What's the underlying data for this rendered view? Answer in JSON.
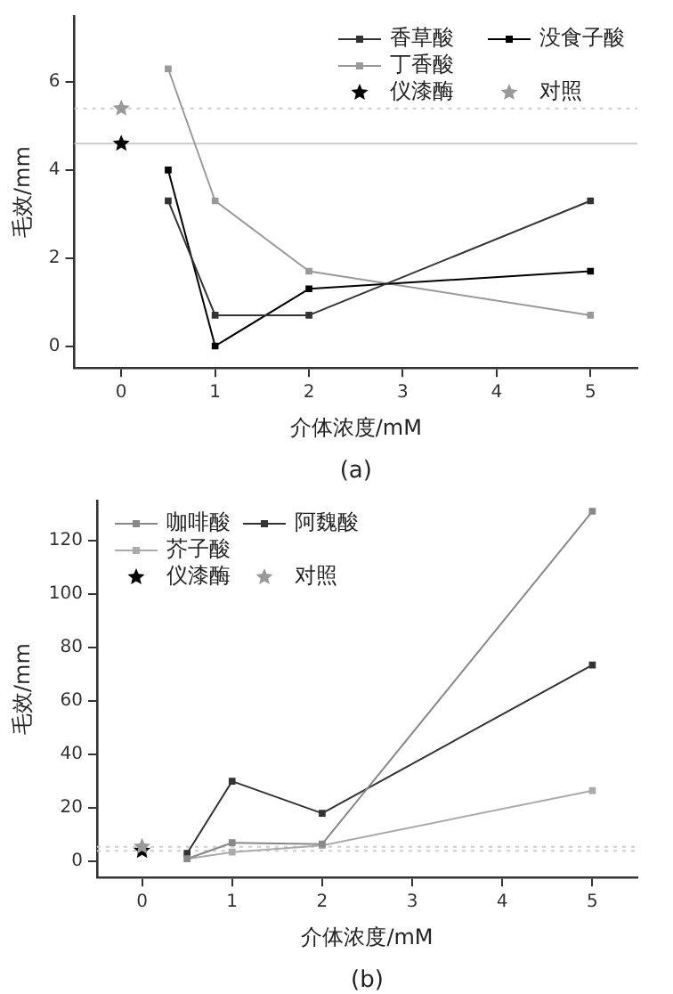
{
  "chart_data": [
    {
      "type": "line",
      "annotations": [
        "(a)"
      ],
      "xlabel": "介体浓度/mM",
      "ylabel": "毛效/mm",
      "xlim": [
        -0.5,
        5.5
      ],
      "xticks": [
        0,
        1,
        2,
        3,
        4,
        5
      ],
      "ylim": [
        -0.5,
        7.5
      ],
      "yticks": [
        0,
        2,
        4,
        6
      ],
      "grid": false,
      "legend": "top right",
      "line_style": "solid",
      "series": [
        {
          "name": "香草酸",
          "color": "#333333",
          "marker": "square",
          "x": [
            0.5,
            1,
            2,
            5
          ],
          "values": [
            3.3,
            0.7,
            0.7,
            3.3
          ]
        },
        {
          "name": "没食子酸",
          "color": "#000000",
          "marker": "square",
          "x": [
            0.5,
            1,
            2,
            5
          ],
          "values": [
            4,
            0,
            1.3,
            1.7
          ]
        },
        {
          "name": "丁香酸",
          "color": "#999999",
          "marker": "square",
          "x": [
            0.5,
            1,
            2,
            5
          ],
          "values": [
            6.3,
            3.3,
            1.7,
            0.7
          ]
        },
        {
          "name": "仪漆酶",
          "type": "scatter",
          "color": "#000000",
          "marker": "star",
          "x": [
            0
          ],
          "values": [
            4.6
          ]
        },
        {
          "name": "对照",
          "type": "scatter",
          "color": "#999999",
          "marker": "star",
          "x": [
            0
          ],
          "values": [
            5.4
          ]
        }
      ],
      "ref_lines": [
        {
          "axis": "y",
          "value": 4.6,
          "color": "#cccccc",
          "line_style": "solid"
        },
        {
          "axis": "y",
          "value": 5.4,
          "color": "#cccccc",
          "line_style": "dotted"
        }
      ]
    },
    {
      "type": "line",
      "annotations": [
        "(b)"
      ],
      "xlabel": "介体浓度/mM",
      "ylabel": "毛效/mm",
      "xlim": [
        -0.5,
        5.5
      ],
      "xticks": [
        0,
        1,
        2,
        3,
        4,
        5
      ],
      "ylim": [
        -6,
        135
      ],
      "yticks": [
        0,
        20,
        40,
        60,
        80,
        100,
        120
      ],
      "grid": false,
      "legend": "top left",
      "line_style": "solid",
      "series": [
        {
          "name": "咖啡酸",
          "color": "#888888",
          "marker": "square",
          "x": [
            0.5,
            1,
            2,
            5
          ],
          "values": [
            1,
            7,
            6.5,
            131
          ]
        },
        {
          "name": "阿魏酸",
          "color": "#333333",
          "marker": "square",
          "x": [
            0.5,
            1,
            2,
            5
          ],
          "values": [
            3,
            30,
            18,
            73.5
          ]
        },
        {
          "name": "芥子酸",
          "color": "#aaaaaa",
          "marker": "square",
          "x": [
            0.5,
            1,
            2,
            5
          ],
          "values": [
            1,
            3.5,
            6,
            26.5
          ]
        },
        {
          "name": "仪漆酶",
          "type": "scatter",
          "color": "#000000",
          "marker": "star",
          "x": [
            0
          ],
          "values": [
            4
          ]
        },
        {
          "name": "对照",
          "type": "scatter",
          "color": "#999999",
          "marker": "star",
          "x": [
            0
          ],
          "values": [
            5.5
          ]
        }
      ],
      "ref_lines": [
        {
          "axis": "y",
          "value": 4,
          "color": "#cccccc",
          "line_style": "dotted"
        },
        {
          "axis": "y",
          "value": 5.5,
          "color": "#cccccc",
          "line_style": "dotted"
        }
      ]
    }
  ]
}
